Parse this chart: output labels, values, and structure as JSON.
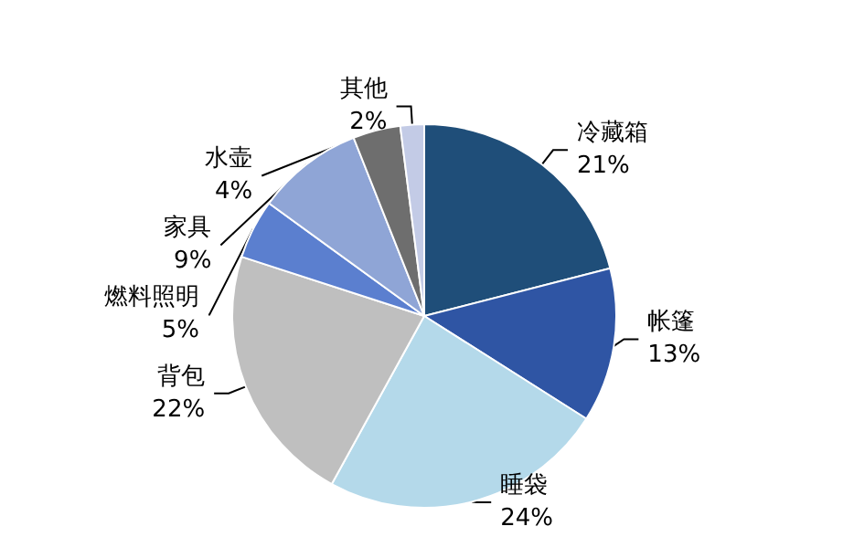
{
  "chart_data": {
    "type": "pie",
    "categories": [
      "冷藏箱",
      "帐篷",
      "睡袋",
      "背包",
      "燃料照明",
      "家具",
      "水壶",
      "其他"
    ],
    "values": [
      21,
      13,
      24,
      22,
      5,
      9,
      4,
      2
    ],
    "value_labels": [
      "21%",
      "13%",
      "24%",
      "22%",
      "5%",
      "9%",
      "4%",
      "2%"
    ],
    "colors": [
      "#1f4e79",
      "#2f55a4",
      "#b4d9ea",
      "#bfbfbf",
      "#5b7fcf",
      "#8fa5d6",
      "#6e6e6e",
      "#c3cbe6"
    ],
    "legend": false
  }
}
